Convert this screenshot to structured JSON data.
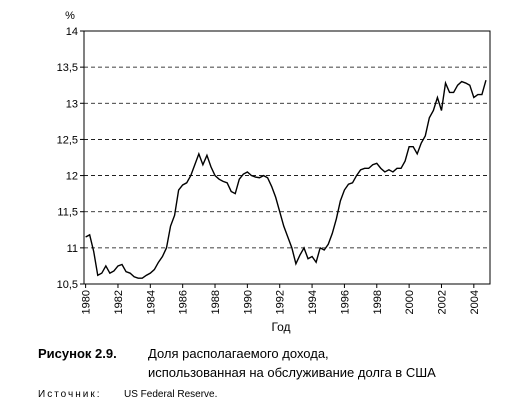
{
  "chart_data": {
    "type": "line",
    "y_unit": "%",
    "xlabel": "Год",
    "figure_label": "Рисунок 2.9.",
    "caption_lines": [
      "Доля располагаемого дохода,",
      "использованная на обслуживание долга в США"
    ],
    "source_label": "Источник:",
    "source": "US Federal Reserve.",
    "color": "#000000",
    "grid": true,
    "grid_style": "dashed",
    "xlim": [
      1979.9,
      2005
    ],
    "xticks": [
      1980,
      1982,
      1984,
      1986,
      1988,
      1990,
      1992,
      1994,
      1996,
      1998,
      2000,
      2002,
      2004
    ],
    "ylim": [
      10.5,
      14
    ],
    "yticks": [
      {
        "value": 10.5,
        "label": "10,5"
      },
      11,
      {
        "value": 11.5,
        "label": "11,5"
      },
      12,
      {
        "value": 12.5,
        "label": "12,5"
      },
      13,
      {
        "value": 13.5,
        "label": "13,5"
      },
      14
    ],
    "x": [
      1980,
      1980.25,
      1980.5,
      1980.75,
      1981,
      1981.25,
      1981.5,
      1981.75,
      1982,
      1982.25,
      1982.5,
      1982.75,
      1983,
      1983.25,
      1983.5,
      1983.75,
      1984,
      1984.25,
      1984.5,
      1984.75,
      1985,
      1985.25,
      1985.5,
      1985.75,
      1986,
      1986.25,
      1986.5,
      1986.75,
      1987,
      1987.25,
      1987.5,
      1987.75,
      1988,
      1988.25,
      1988.5,
      1988.75,
      1989,
      1989.25,
      1989.5,
      1989.75,
      1990,
      1990.25,
      1990.5,
      1990.75,
      1991,
      1991.25,
      1991.5,
      1991.75,
      1992,
      1992.25,
      1992.5,
      1992.75,
      1993,
      1993.25,
      1993.5,
      1993.75,
      1994,
      1994.25,
      1994.5,
      1994.75,
      1995,
      1995.25,
      1995.5,
      1995.75,
      1996,
      1996.25,
      1996.5,
      1996.75,
      1997,
      1997.25,
      1997.5,
      1997.75,
      1998,
      1998.25,
      1998.5,
      1998.75,
      1999,
      1999.25,
      1999.5,
      1999.75,
      2000,
      2000.25,
      2000.5,
      2000.75,
      2001,
      2001.25,
      2001.5,
      2001.75,
      2002,
      2002.25,
      2002.5,
      2002.75,
      2003,
      2003.25,
      2003.5,
      2003.75,
      2004,
      2004.25,
      2004.5,
      2004.75
    ],
    "values": [
      11.15,
      11.18,
      10.95,
      10.62,
      10.65,
      10.75,
      10.65,
      10.68,
      10.75,
      10.77,
      10.67,
      10.65,
      10.6,
      10.58,
      10.58,
      10.62,
      10.65,
      10.7,
      10.8,
      10.88,
      11.0,
      11.3,
      11.45,
      11.8,
      11.87,
      11.9,
      12.0,
      12.15,
      12.3,
      12.15,
      12.28,
      12.12,
      12.0,
      11.95,
      11.92,
      11.9,
      11.78,
      11.75,
      11.95,
      12.02,
      12.05,
      12.0,
      11.98,
      11.97,
      12.0,
      11.97,
      11.85,
      11.7,
      11.5,
      11.3,
      11.15,
      11.0,
      10.78,
      10.9,
      11.0,
      10.85,
      10.88,
      10.8,
      11.0,
      10.97,
      11.05,
      11.2,
      11.4,
      11.65,
      11.8,
      11.88,
      11.9,
      12.0,
      12.08,
      12.1,
      12.1,
      12.15,
      12.17,
      12.1,
      12.05,
      12.08,
      12.05,
      12.1,
      12.1,
      12.2,
      12.4,
      12.4,
      12.3,
      12.45,
      12.55,
      12.8,
      12.9,
      13.08,
      12.9,
      13.28,
      13.15,
      13.15,
      13.25,
      13.3,
      13.28,
      13.25,
      13.08,
      13.12,
      13.12,
      13.32
    ]
  }
}
